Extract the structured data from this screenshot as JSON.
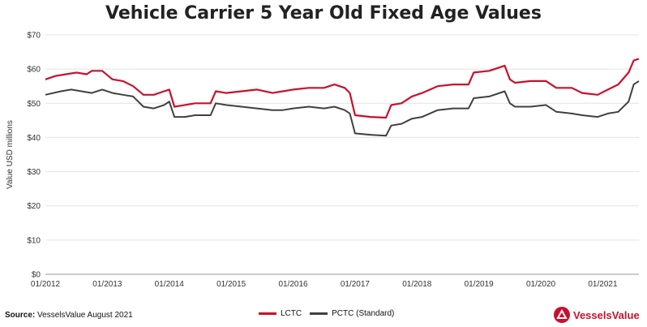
{
  "chart_data": {
    "type": "line",
    "title": "Vehicle Carrier 5 Year Old Fixed Age Values",
    "xlabel": "",
    "ylabel": "Value USD millions",
    "ylim": [
      0,
      70
    ],
    "yticks": [
      "$0",
      "$10",
      "$20",
      "$30",
      "$40",
      "$50",
      "$60",
      "$70"
    ],
    "xticks": [
      "01/2012",
      "01/2013",
      "01/2014",
      "01/2015",
      "01/2016",
      "01/2017",
      "01/2018",
      "01/2019",
      "01/2020",
      "01/2021"
    ],
    "xlim": [
      "2012-01",
      "2021-08"
    ],
    "grid": true,
    "legend_position": "bottom",
    "series": [
      {
        "name": "LCTC",
        "color": "#c8102e",
        "points": [
          [
            "2012-01",
            57.0
          ],
          [
            "2012-03",
            58.0
          ],
          [
            "2012-05",
            58.5
          ],
          [
            "2012-07",
            59.0
          ],
          [
            "2012-09",
            58.5
          ],
          [
            "2012-10",
            59.5
          ],
          [
            "2012-12",
            59.5
          ],
          [
            "2013-02",
            57.0
          ],
          [
            "2013-04",
            56.5
          ],
          [
            "2013-06",
            55.0
          ],
          [
            "2013-08",
            52.5
          ],
          [
            "2013-10",
            52.5
          ],
          [
            "2013-12",
            53.5
          ],
          [
            "2014-01",
            54.0
          ],
          [
            "2014-02",
            49.0
          ],
          [
            "2014-04",
            49.5
          ],
          [
            "2014-06",
            50.0
          ],
          [
            "2014-09",
            50.0
          ],
          [
            "2014-10",
            53.5
          ],
          [
            "2014-12",
            53.0
          ],
          [
            "2015-03",
            53.5
          ],
          [
            "2015-06",
            54.0
          ],
          [
            "2015-09",
            53.0
          ],
          [
            "2015-11",
            53.5
          ],
          [
            "2016-01",
            54.0
          ],
          [
            "2016-04",
            54.5
          ],
          [
            "2016-07",
            54.5
          ],
          [
            "2016-09",
            55.5
          ],
          [
            "2016-11",
            54.5
          ],
          [
            "2016-12",
            53.0
          ],
          [
            "2017-01",
            46.5
          ],
          [
            "2017-04",
            46.0
          ],
          [
            "2017-07",
            45.8
          ],
          [
            "2017-08",
            49.5
          ],
          [
            "2017-10",
            50.0
          ],
          [
            "2017-12",
            52.0
          ],
          [
            "2018-02",
            53.0
          ],
          [
            "2018-05",
            55.0
          ],
          [
            "2018-08",
            55.5
          ],
          [
            "2018-11",
            55.5
          ],
          [
            "2018-12",
            59.0
          ],
          [
            "2019-03",
            59.5
          ],
          [
            "2019-06",
            61.0
          ],
          [
            "2019-07",
            57.0
          ],
          [
            "2019-08",
            56.0
          ],
          [
            "2019-11",
            56.5
          ],
          [
            "2020-02",
            56.5
          ],
          [
            "2020-04",
            54.5
          ],
          [
            "2020-07",
            54.5
          ],
          [
            "2020-09",
            53.0
          ],
          [
            "2020-12",
            52.5
          ],
          [
            "2021-02",
            54.0
          ],
          [
            "2021-04",
            55.5
          ],
          [
            "2021-06",
            59.0
          ],
          [
            "2021-07",
            62.5
          ],
          [
            "2021-08",
            63.0
          ]
        ]
      },
      {
        "name": "PCTC (Standard)",
        "color": "#404040",
        "points": [
          [
            "2012-01",
            52.5
          ],
          [
            "2012-04",
            53.5
          ],
          [
            "2012-06",
            54.0
          ],
          [
            "2012-08",
            53.5
          ],
          [
            "2012-10",
            53.0
          ],
          [
            "2012-12",
            54.0
          ],
          [
            "2013-02",
            53.0
          ],
          [
            "2013-04",
            52.5
          ],
          [
            "2013-06",
            52.0
          ],
          [
            "2013-08",
            49.0
          ],
          [
            "2013-10",
            48.5
          ],
          [
            "2013-12",
            49.5
          ],
          [
            "2014-01",
            50.5
          ],
          [
            "2014-02",
            46.0
          ],
          [
            "2014-04",
            46.0
          ],
          [
            "2014-06",
            46.5
          ],
          [
            "2014-09",
            46.5
          ],
          [
            "2014-10",
            50.0
          ],
          [
            "2014-12",
            49.5
          ],
          [
            "2015-03",
            49.0
          ],
          [
            "2015-06",
            48.5
          ],
          [
            "2015-09",
            48.0
          ],
          [
            "2015-11",
            48.0
          ],
          [
            "2016-01",
            48.5
          ],
          [
            "2016-04",
            49.0
          ],
          [
            "2016-07",
            48.5
          ],
          [
            "2016-09",
            49.0
          ],
          [
            "2016-11",
            48.0
          ],
          [
            "2016-12",
            47.0
          ],
          [
            "2017-01",
            41.2
          ],
          [
            "2017-04",
            40.8
          ],
          [
            "2017-07",
            40.5
          ],
          [
            "2017-08",
            43.5
          ],
          [
            "2017-10",
            44.0
          ],
          [
            "2017-12",
            45.5
          ],
          [
            "2018-02",
            46.0
          ],
          [
            "2018-05",
            48.0
          ],
          [
            "2018-08",
            48.5
          ],
          [
            "2018-11",
            48.5
          ],
          [
            "2018-12",
            51.5
          ],
          [
            "2019-03",
            52.0
          ],
          [
            "2019-06",
            53.5
          ],
          [
            "2019-07",
            50.0
          ],
          [
            "2019-08",
            49.0
          ],
          [
            "2019-11",
            49.0
          ],
          [
            "2020-02",
            49.5
          ],
          [
            "2020-04",
            47.5
          ],
          [
            "2020-07",
            47.0
          ],
          [
            "2020-09",
            46.5
          ],
          [
            "2020-12",
            46.0
          ],
          [
            "2021-02",
            47.0
          ],
          [
            "2021-04",
            47.5
          ],
          [
            "2021-06",
            50.5
          ],
          [
            "2021-07",
            55.5
          ],
          [
            "2021-08",
            56.5
          ]
        ]
      }
    ]
  },
  "footer": {
    "source_label": "Source:",
    "source_text": "VesselsValue August 2021",
    "brand": "VesselsValue",
    "brand_color": "#c8102e"
  }
}
